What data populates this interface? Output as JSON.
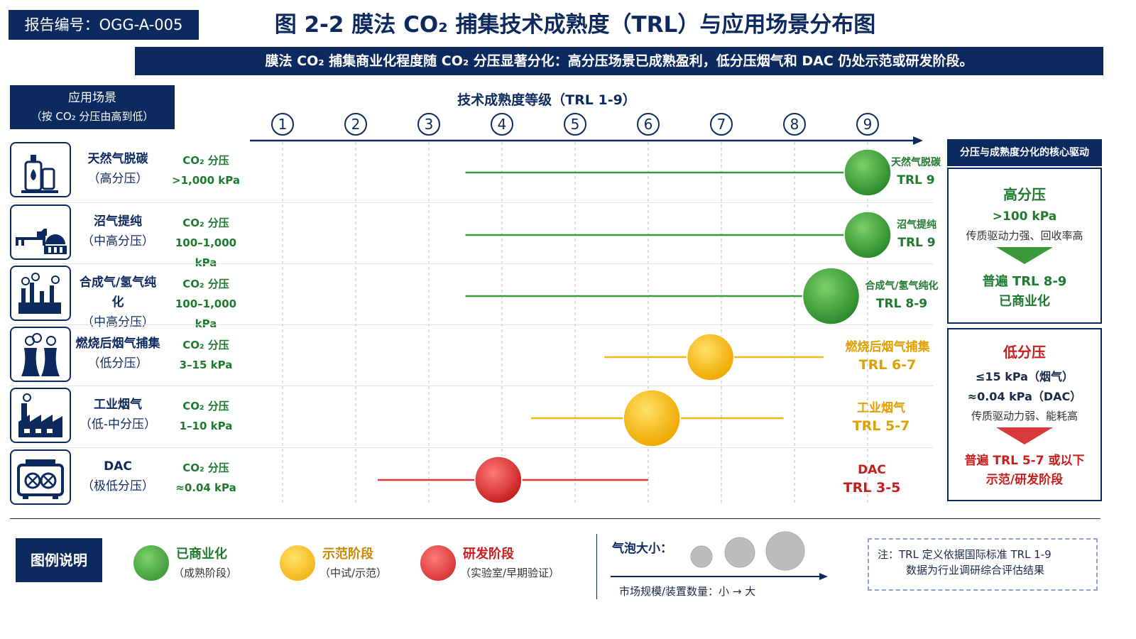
{
  "report_id": "报告编号：OGG-A-005",
  "title": "图 2-2  膜法 CO₂ 捕集技术成熟度（TRL）与应用场景分布图",
  "subtitle": "膜法 CO₂ 捕集商业化程度随 CO₂ 分压显著分化：高分压场景已成熟盈利，低分压烟气和 DAC 仍处示范或研发阶段。",
  "scene_header": {
    "line1": "应用场景",
    "line2": "（按 CO₂ 分压由高到低）"
  },
  "colors": {
    "navy": "#0d2a5f",
    "commercial": "#3a9a3a",
    "demo": "#f2b818",
    "rd": "#d83a3a",
    "bubble_ref": "#bdbdbd"
  },
  "chart_data": {
    "type": "scatter",
    "xlabel": "技术成熟度等级（TRL 1-9）",
    "x_ticks": [
      "1",
      "2",
      "3",
      "4",
      "5",
      "6",
      "7",
      "8",
      "9"
    ],
    "xlim": [
      1,
      9
    ],
    "rows": [
      {
        "icon": "gas-tank-flame-icon",
        "name": "天然气脱碳",
        "pressure_class": "（高分压）",
        "pressure_label": "CO₂ 分压",
        "pressure_value": ">1,000 kPa",
        "stage": "commercial",
        "range": [
          3.5,
          9
        ],
        "point": 9,
        "size": 2,
        "end_name": "天然气脱碳",
        "end_trl": "TRL 9"
      },
      {
        "icon": "cow-biogas-icon",
        "name": "沼气提纯",
        "pressure_class": "（中高分压）",
        "pressure_label": "CO₂ 分压",
        "pressure_value": "100–1,000 kPa",
        "stage": "commercial",
        "range": [
          3.5,
          9
        ],
        "point": 9,
        "size": 2,
        "end_name": "沼气提纯",
        "end_trl": "TRL 9"
      },
      {
        "icon": "refinery-icon",
        "name": "合成气/氢气纯化",
        "pressure_class": "（中高分压）",
        "pressure_label": "CO₂ 分压",
        "pressure_value": "100–1,000 kPa",
        "stage": "commercial",
        "range": [
          3.5,
          8.5
        ],
        "point": 8.5,
        "size": 3,
        "end_name": "合成气/氢气纯化",
        "end_trl": "TRL 8-9"
      },
      {
        "icon": "cooling-tower-icon",
        "name": "燃烧后烟气捕集",
        "pressure_class": "（低分压）",
        "pressure_label": "CO₂ 分压",
        "pressure_value": "3–15 kPa",
        "stage": "demo",
        "range": [
          5.4,
          8.4
        ],
        "point": 6.85,
        "size": 2,
        "end_name": "燃烧后烟气捕集",
        "end_trl": "TRL 6-7"
      },
      {
        "icon": "factory-icon",
        "name": "工业烟气",
        "pressure_class": "（低-中分压）",
        "pressure_label": "CO₂ 分压",
        "pressure_value": "1–10 kPa",
        "stage": "demo",
        "range": [
          4.4,
          7.85
        ],
        "point": 6.05,
        "size": 3,
        "end_name": "工业烟气",
        "end_trl": "TRL 5-7"
      },
      {
        "icon": "dac-unit-icon",
        "name": "DAC",
        "pressure_class": "（极低分压）",
        "pressure_label": "CO₂ 分压",
        "pressure_value": "≈0.04 kPa",
        "stage": "rd",
        "range": [
          2.3,
          6
        ],
        "point": 3.95,
        "size": 2,
        "end_name": "DAC",
        "end_trl": "TRL 3-5"
      }
    ]
  },
  "driver_panel": {
    "header": "分压与成熟度分化的核心驱动",
    "high": {
      "title": "高分压",
      "value": ">100 kPa",
      "desc": "传质驱动力强、回收率高",
      "result1": "普遍 TRL 8-9",
      "result2": "已商业化"
    },
    "low": {
      "title": "低分压",
      "value1": "≤15 kPa（烟气）",
      "value2": "≈0.04 kPa（DAC）",
      "desc": "传质驱动力弱、能耗高",
      "result1": "普遍 TRL 5-7 或以下",
      "result2": "示范/研发阶段"
    }
  },
  "legend": {
    "title": "图例说明",
    "items": [
      {
        "title": "已商业化",
        "sub": "（成熟阶段）",
        "color": "#3a9a3a"
      },
      {
        "title": "示范阶段",
        "sub": "（中试/示范）",
        "color": "#f2b818"
      },
      {
        "title": "研发阶段",
        "sub": "（实验室/早期验证）",
        "color": "#d83a3a"
      }
    ],
    "bubble_title": "气泡大小：",
    "bubble_axis": "市场规模/装置数量：小 → 大"
  },
  "note": {
    "line1": "注：TRL 定义依据国际标准 TRL 1-9",
    "line2": "数据为行业调研综合评估结果"
  }
}
